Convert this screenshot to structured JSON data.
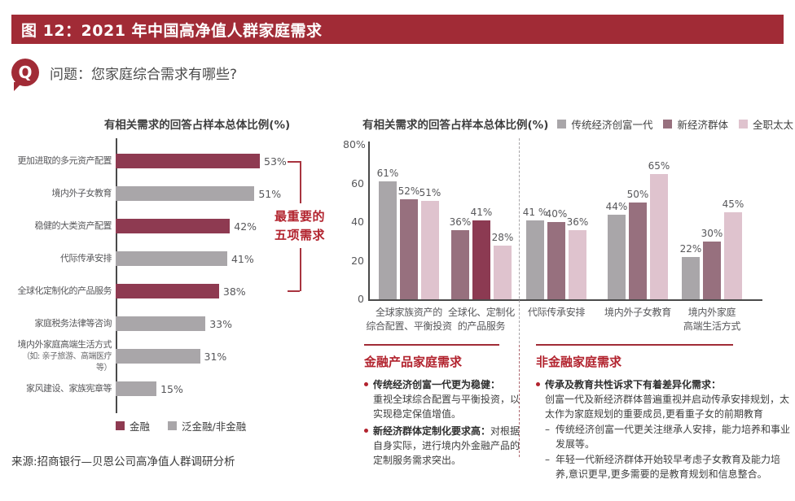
{
  "page": {
    "figure_title": "图 12：2021 年中国高净值人群家庭需求",
    "question": "问题：您家庭综合需求有哪些?",
    "source": "来源:招商银行—贝恩公司高净值人群调研分析"
  },
  "colors": {
    "header_red": "#A12B36",
    "accent_red": "#B2232E",
    "bracket_red": "#A8343F",
    "maroon": "#8E3A51",
    "gray": "#A9A6A9",
    "mauve": "#97707E",
    "highlight_red": "#8C3A52",
    "pink": "#DFC3CE"
  },
  "chart_data": [
    {
      "type": "bar",
      "orientation": "horizontal",
      "title": "有相关需求的回答占样本总体比例(%)",
      "xlim": [
        0,
        60
      ],
      "categories": [
        "更加进取的多元资产配置",
        "境内外子女教育",
        "稳健的大类资产配置",
        "代际传承安排",
        "全球化定制化的产品服务",
        "家庭税务法律等咨询",
        "境内外家庭高端生活方式",
        "家风建设、家族宪章等"
      ],
      "values": [
        53,
        51,
        42,
        41,
        38,
        33,
        31,
        15
      ],
      "bars": [
        {
          "label": "更加进取的多元资产配置",
          "value": 53,
          "display": "53%",
          "series": "金融",
          "color": "maroon"
        },
        {
          "label": "境内外子女教育",
          "value": 51,
          "display": "51%",
          "series": "泛金融/非金融",
          "color": "gray"
        },
        {
          "label": "稳健的大类资产配置",
          "value": 42,
          "display": "42%",
          "series": "金融",
          "color": "maroon"
        },
        {
          "label": "代际传承安排",
          "value": 41,
          "display": "41%",
          "series": "泛金融/非金融",
          "color": "gray"
        },
        {
          "label": "全球化定制化的产品服务",
          "value": 38,
          "display": "38%",
          "series": "金融",
          "color": "maroon"
        },
        {
          "label": "家庭税务法律等咨询",
          "value": 33,
          "display": "33%",
          "series": "泛金融/非金融",
          "color": "gray"
        },
        {
          "label": "境内外家庭高端生活方式",
          "sublabel": "（如: 亲子旅游、高端医疗等）",
          "value": 31,
          "display": "31%",
          "series": "泛金融/非金融",
          "color": "gray"
        },
        {
          "label": "家风建设、家族宪章等",
          "value": 15,
          "display": "15%",
          "series": "泛金融/非金融",
          "color": "gray"
        }
      ],
      "annotation": {
        "lines": [
          "最重要的",
          "五项需求"
        ],
        "applies_to_bars": [
          1,
          2,
          3,
          4,
          5
        ]
      },
      "legend": [
        {
          "label": "金融",
          "color": "maroon"
        },
        {
          "label": "泛金融/非金融",
          "color": "gray"
        }
      ]
    },
    {
      "type": "bar",
      "orientation": "vertical",
      "title": "有相关需求的回答占样本总体比例(%)",
      "ylim": [
        0,
        80
      ],
      "yticks": [
        {
          "label": "80%",
          "value": 80
        },
        {
          "label": "60",
          "value": 60
        },
        {
          "label": "40",
          "value": 40
        },
        {
          "label": "20",
          "value": 20
        },
        {
          "label": "0",
          "value": 0
        }
      ],
      "legend": [
        {
          "label": "传统经济创富一代",
          "color": "gray"
        },
        {
          "label": "新经济群体",
          "color": "mauve"
        },
        {
          "label": "全职太太",
          "color": "pink"
        }
      ],
      "groups": [
        {
          "label_lines": [
            "全球家族资产的",
            "综合配置、平衡投资"
          ],
          "bars": [
            {
              "display": "61%",
              "value": 61,
              "color": "gray"
            },
            {
              "display": "52%",
              "value": 52,
              "color": "mauve"
            },
            {
              "display": "51%",
              "value": 51,
              "color": "pink"
            }
          ]
        },
        {
          "label_lines": [
            "全球化、定制化",
            "的产品服务"
          ],
          "bars": [
            {
              "display": "36%",
              "value": 36,
              "color": "mauve"
            },
            {
              "display": "41%",
              "value": 41,
              "color": "highlight_red"
            },
            {
              "display": "28%",
              "value": 28,
              "color": "pink"
            }
          ]
        },
        {
          "label_lines": [
            "代际传承安排"
          ],
          "bars": [
            {
              "display": "41 %",
              "value": 41,
              "color": "gray"
            },
            {
              "display": "40%",
              "value": 40,
              "color": "mauve"
            },
            {
              "display": "36%",
              "value": 36,
              "color": "pink"
            }
          ]
        },
        {
          "label_lines": [
            "境内外子女教育"
          ],
          "bars": [
            {
              "display": "44%",
              "value": 44,
              "color": "gray"
            },
            {
              "display": "50%",
              "value": 50,
              "color": "mauve"
            },
            {
              "display": "65%",
              "value": 65,
              "color": "pink"
            }
          ]
        },
        {
          "label_lines": [
            "境内外家庭",
            "高端生活方式"
          ],
          "bars": [
            {
              "display": "22%",
              "value": 22,
              "color": "gray"
            },
            {
              "display": "30%",
              "value": 30,
              "color": "mauve"
            },
            {
              "display": "45%",
              "value": 45,
              "color": "pink"
            }
          ]
        }
      ]
    }
  ],
  "sections": {
    "financial": {
      "title": "金融产品家庭需求",
      "bullets": [
        {
          "bold": "传统经济创富一代更为稳健：",
          "break_after_bold": true,
          "text": "重视全球综合配置与平衡投资，以实现稳定保值增值。",
          "subitems": []
        },
        {
          "bold": "新经济群体定制化要求高：",
          "break_after_bold": false,
          "text": "对根据自身实际，进行境内外金融产品的定制服务需求突出。",
          "subitems": []
        }
      ]
    },
    "non_financial": {
      "title": "非金融家庭需求",
      "bullets": [
        {
          "bold": "传承及教育共性诉求下有着差异化需求：",
          "break_after_bold": true,
          "text": "创富一代及新经济群体普遍重视并启动传承安排规划，太太作为家庭规划的重要成员,更看重子女的前期教育",
          "subitems": [
            "传统经济创富一代更关注继承人安排，能力培养和事业发展等。",
            "年轻一代新经济群体开始较早考虑子女教育及能力培养,意识更早,更多需要的是教育规划和信息整合。"
          ]
        }
      ]
    }
  }
}
